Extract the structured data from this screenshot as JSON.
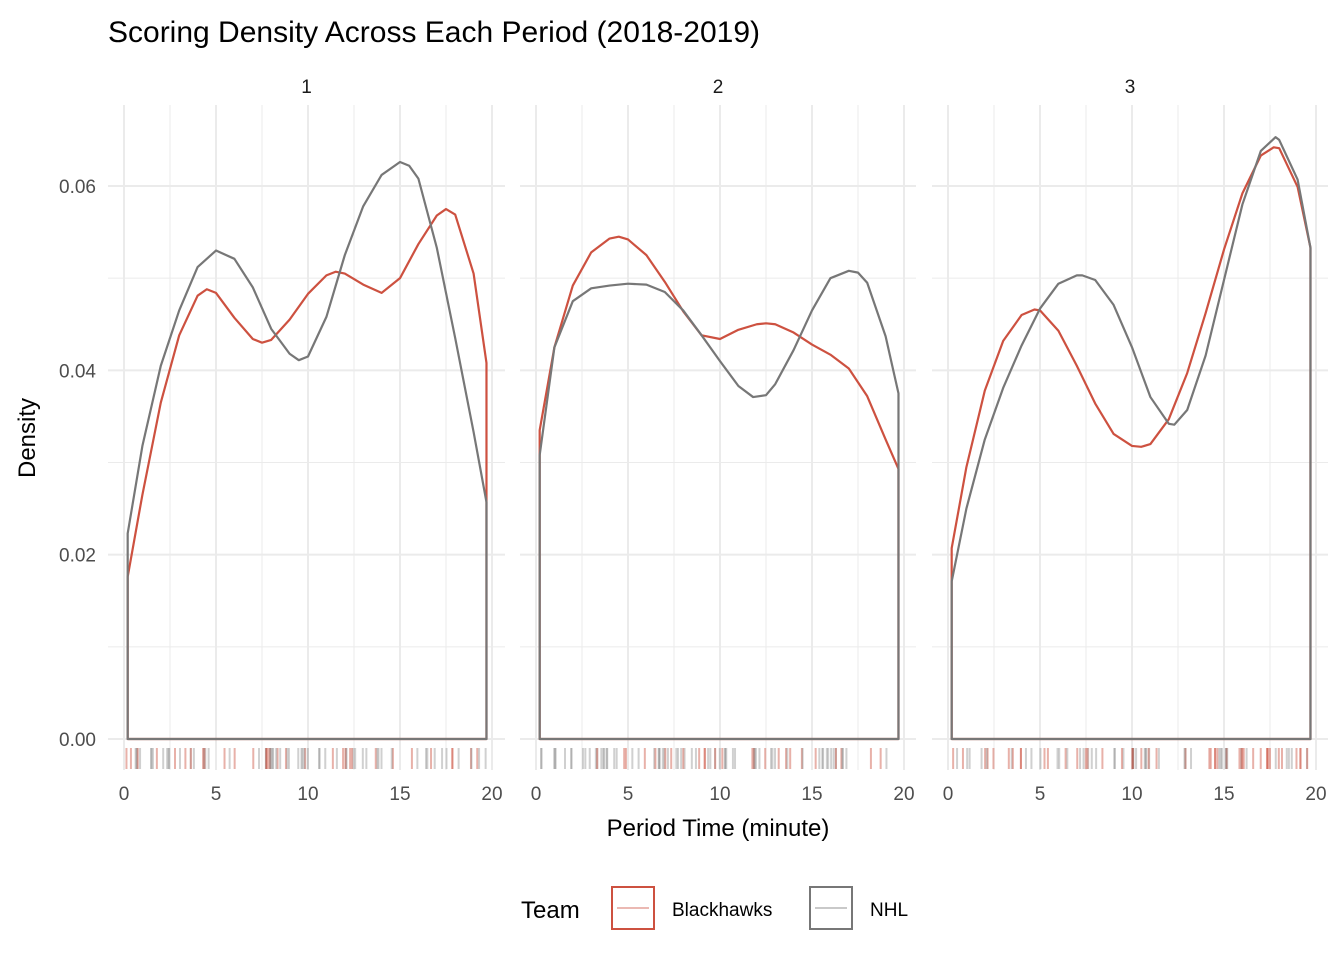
{
  "chart_data": {
    "type": "line",
    "title": "Scoring Density Across Each Period (2018-2019)",
    "xlabel": "Period Time (minute)",
    "ylabel": "Density",
    "xlim": [
      0,
      20
    ],
    "ylim": [
      0,
      0.068
    ],
    "x_ticks": [
      "0",
      "5",
      "10",
      "15",
      "20"
    ],
    "x_tick_values": [
      0,
      5,
      10,
      15,
      20
    ],
    "y_ticks": [
      "0.00",
      "0.02",
      "0.04",
      "0.06"
    ],
    "y_tick_values": [
      0,
      0.02,
      0.04,
      0.06
    ],
    "grid": true,
    "legend": {
      "title": "Team",
      "position": "bottom",
      "entries": [
        "Blackhawks",
        "NHL"
      ]
    },
    "colors": {
      "Blackhawks": "#cd5140",
      "NHL": "#777777",
      "grid": "#ebebeb"
    },
    "facets": [
      {
        "label": "1",
        "series": [
          {
            "name": "Blackhawks",
            "x": [
              0.2,
              1,
              2,
              3,
              4,
              4.5,
              5,
              6,
              7,
              7.5,
              8,
              9,
              10,
              11,
              11.5,
              12,
              13,
              14,
              15,
              16,
              17,
              17.5,
              18,
              19,
              19.7
            ],
            "y": [
              0.0176,
              0.0265,
              0.0365,
              0.0438,
              0.0481,
              0.0488,
              0.0484,
              0.0457,
              0.0434,
              0.043,
              0.0433,
              0.0455,
              0.0483,
              0.0503,
              0.0507,
              0.0505,
              0.0493,
              0.0484,
              0.05,
              0.0537,
              0.0568,
              0.0575,
              0.0569,
              0.0505,
              0.0408
            ]
          },
          {
            "name": "NHL",
            "x": [
              0.2,
              1,
              2,
              3,
              4,
              5,
              6,
              7,
              8,
              9,
              9.5,
              10,
              11,
              12,
              13,
              14,
              15,
              15.5,
              16,
              17,
              18,
              19,
              19.7
            ],
            "y": [
              0.0223,
              0.0318,
              0.0405,
              0.0465,
              0.0512,
              0.053,
              0.0521,
              0.049,
              0.0445,
              0.0418,
              0.0411,
              0.0415,
              0.0458,
              0.0525,
              0.0578,
              0.0612,
              0.0626,
              0.0622,
              0.0608,
              0.0533,
              0.0435,
              0.0333,
              0.0257
            ]
          }
        ]
      },
      {
        "label": "2",
        "series": [
          {
            "name": "Blackhawks",
            "x": [
              0.2,
              1,
              2,
              3,
              4,
              4.5,
              5,
              6,
              7,
              8,
              9,
              10,
              11,
              12,
              12.5,
              13,
              14,
              15,
              16,
              17,
              18,
              19,
              19.7
            ],
            "y": [
              0.0335,
              0.0425,
              0.0492,
              0.0528,
              0.0543,
              0.0545,
              0.0542,
              0.0525,
              0.0496,
              0.0464,
              0.0438,
              0.0434,
              0.0444,
              0.045,
              0.0451,
              0.045,
              0.0441,
              0.0428,
              0.0417,
              0.0402,
              0.0372,
              0.0325,
              0.0293
            ]
          },
          {
            "name": "NHL",
            "x": [
              0.2,
              1,
              2,
              3,
              4,
              5,
              6,
              7,
              8,
              9,
              10,
              11,
              11.8,
              12.5,
              13,
              14,
              15,
              16,
              17,
              17.5,
              18,
              19,
              19.7
            ],
            "y": [
              0.0308,
              0.0425,
              0.0475,
              0.0489,
              0.0492,
              0.0494,
              0.0493,
              0.0485,
              0.0465,
              0.0438,
              0.041,
              0.0383,
              0.0371,
              0.0373,
              0.0385,
              0.0422,
              0.0465,
              0.05,
              0.0508,
              0.0506,
              0.0495,
              0.0437,
              0.0375
            ]
          }
        ]
      },
      {
        "label": "3",
        "series": [
          {
            "name": "Blackhawks",
            "x": [
              0.2,
              1,
              2,
              3,
              4,
              4.7,
              5,
              6,
              7,
              8,
              9,
              10,
              10.5,
              11,
              12,
              13,
              14,
              15,
              16,
              17,
              17.7,
              18,
              19,
              19.7
            ],
            "y": [
              0.0207,
              0.0295,
              0.0378,
              0.0432,
              0.046,
              0.0466,
              0.0465,
              0.0443,
              0.0405,
              0.0364,
              0.0331,
              0.0318,
              0.0317,
              0.032,
              0.0347,
              0.0397,
              0.0462,
              0.0531,
              0.0592,
              0.0633,
              0.0642,
              0.0641,
              0.0599,
              0.0533
            ]
          },
          {
            "name": "NHL",
            "x": [
              0.2,
              1,
              2,
              3,
              4,
              5,
              6,
              7,
              7.3,
              8,
              9,
              10,
              11,
              12,
              12.3,
              13,
              14,
              15,
              16,
              17,
              17.8,
              18,
              19,
              19.7
            ],
            "y": [
              0.0171,
              0.025,
              0.0325,
              0.0381,
              0.0427,
              0.0467,
              0.0494,
              0.0503,
              0.0503,
              0.0498,
              0.0471,
              0.0425,
              0.0371,
              0.0342,
              0.0341,
              0.0357,
              0.0416,
              0.0498,
              0.058,
              0.0638,
              0.0653,
              0.065,
              0.0607,
              0.0533
            ]
          }
        ]
      }
    ]
  }
}
